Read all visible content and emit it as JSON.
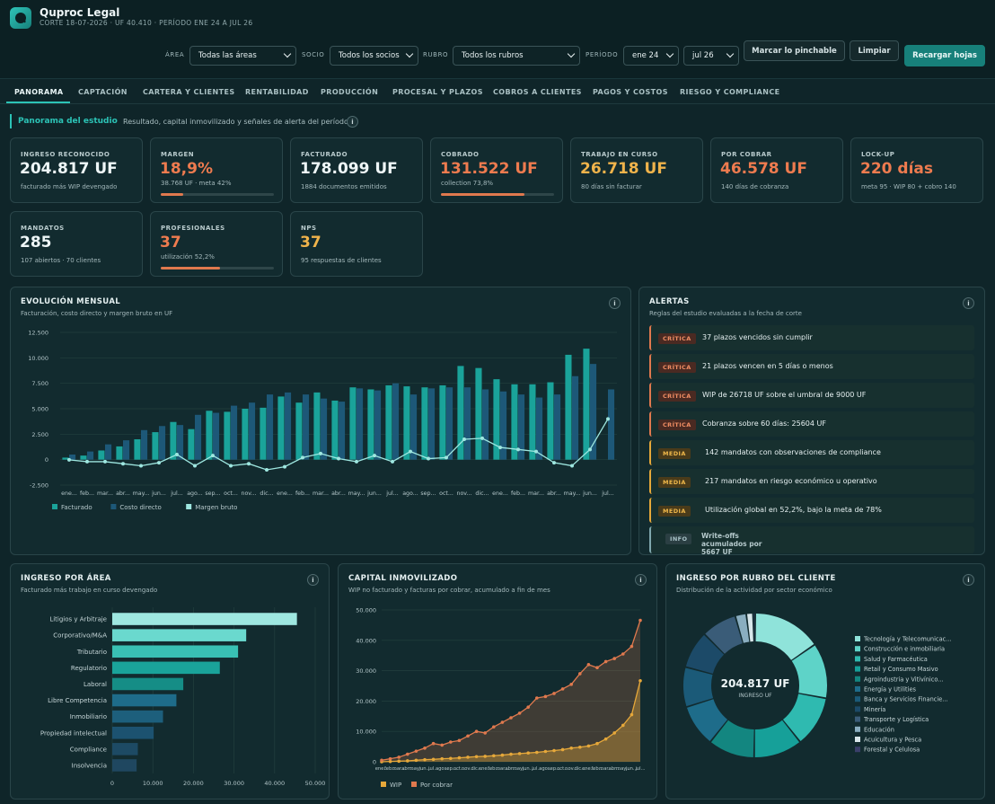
{
  "header": {
    "title": "Quproc Legal",
    "subtitle": "CORTE 18-07-2026 · UF 40.410 · PERÍODO ENE 24 A JUL 26"
  },
  "filters": {
    "area_label": "ÁREA",
    "area_value": "Todas las áreas",
    "socio_label": "SOCIO",
    "socio_value": "Todos los socios",
    "rubro_label": "RUBRO",
    "rubro_value": "Todos los rubros",
    "periodo_label": "PERÍODO",
    "periodo_from": "ene 24",
    "periodo_to": "jul 26"
  },
  "buttons": {
    "mark": "Marcar lo pinchable",
    "clear": "Limpiar",
    "reload": "Recargar hojas"
  },
  "tabs": [
    "PANORAMA",
    "CAPTACIÓN",
    "CARTERA Y CLIENTES",
    "RENTABILIDAD",
    "PRODUCCIÓN",
    "PROCESAL Y PLAZOS",
    "COBROS A CLIENTES",
    "PAGOS Y COSTOS",
    "RIESGO Y COMPLIANCE"
  ],
  "section": {
    "title": "Panorama del estudio",
    "desc": "Resultado, capital inmovilizado y señales de alerta del período.",
    "info": "i"
  },
  "kpis": [
    {
      "label": "INGRESO RECONOCIDO",
      "value": "204.817 UF",
      "sub": "facturado más WIP devengado",
      "color": "#eef6f7"
    },
    {
      "label": "MARGEN",
      "value": "18,9%",
      "sub": "38.768 UF · meta 42%",
      "color": "#ee7b4f",
      "progress": 0.2
    },
    {
      "label": "FACTURADO",
      "value": "178.099 UF",
      "sub": "1884 documentos emitidos",
      "color": "#eef6f7"
    },
    {
      "label": "COBRADO",
      "value": "131.522 UF",
      "sub": "collection 73,8%",
      "color": "#ee7b4f",
      "progress": 0.738
    },
    {
      "label": "TRABAJO EN CURSO",
      "value": "26.718 UF",
      "sub": "80 días sin facturar",
      "color": "#efb34b"
    },
    {
      "label": "POR COBRAR",
      "value": "46.578 UF",
      "sub": "140 días de cobranza",
      "color": "#ee7b4f"
    },
    {
      "label": "LOCK-UP",
      "value": "220 días",
      "sub": "meta 95 · WIP 80 + cobro 140",
      "color": "#ee7b4f"
    },
    {
      "label": "MANDATOS",
      "value": "285",
      "sub": "107 abiertos · 70 clientes",
      "color": "#eef6f7"
    },
    {
      "label": "PROFESIONALES",
      "value": "37",
      "sub": "utilización 52,2%",
      "color": "#ee7b4f",
      "progress": 0.522
    },
    {
      "label": "NPS",
      "value": "37",
      "sub": "95 respuestas de clientes",
      "color": "#efb34b"
    }
  ],
  "alerts_panel": {
    "title": "ALERTAS",
    "desc": "Reglas del estudio evaluadas a la fecha de corte"
  },
  "alerts": [
    {
      "level": "CRÍTICA",
      "text": "37 plazos vencidos sin cumplir"
    },
    {
      "level": "CRÍTICA",
      "text": "21 plazos vencen en 5 días o menos"
    },
    {
      "level": "CRÍTICA",
      "text": "WIP de 26718 UF sobre el umbral de 9000 UF"
    },
    {
      "level": "CRÍTICA",
      "text": "Cobranza sobre 60 días: 25604 UF"
    },
    {
      "level": "MEDIA",
      "text": "142 mandatos con observaciones de compliance"
    },
    {
      "level": "MEDIA",
      "text": "217 mandatos en riesgo económico u operativo"
    },
    {
      "level": "MEDIA",
      "text": "Utilización global en 52,2%, bajo la meta de 78%"
    },
    {
      "level": "INFO",
      "text": "Write-offs acumulados por 5667 UF"
    }
  ],
  "chart_data": [
    {
      "type": "bar",
      "title": "EVOLUCIÓN MENSUAL",
      "subtitle": "Facturación, costo directo y margen bruto en UF",
      "categories": [
        "ene...",
        "feb...",
        "mar...",
        "abr...",
        "may...",
        "jun...",
        "jul...",
        "ago...",
        "sep...",
        "oct...",
        "nov...",
        "dic...",
        "ene...",
        "feb...",
        "mar...",
        "abr...",
        "may...",
        "jun...",
        "jul...",
        "ago...",
        "sep...",
        "oct...",
        "nov...",
        "dic...",
        "ene...",
        "feb...",
        "mar...",
        "abr...",
        "may...",
        "jun...",
        "jul..."
      ],
      "ylim": [
        -2500,
        12500
      ],
      "yticks": [
        "-2.500",
        "0",
        "2.500",
        "5.000",
        "7.500",
        "10.000",
        "12.500"
      ],
      "series": [
        {
          "name": "Facturado",
          "color": "#1aa39a",
          "values": [
            200,
            400,
            900,
            1300,
            2000,
            2700,
            3700,
            3000,
            4800,
            4700,
            5000,
            5100,
            6200,
            5600,
            6600,
            5800,
            7100,
            6900,
            7300,
            7200,
            7100,
            7300,
            9200,
            9000,
            7900,
            7400,
            7400,
            7600,
            10300,
            10900,
            null
          ]
        },
        {
          "name": "Costo directo",
          "color": "#1d5878",
          "values": [
            500,
            800,
            1500,
            1900,
            2900,
            3300,
            3400,
            4400,
            4600,
            5300,
            5600,
            6400,
            6600,
            6400,
            6000,
            5700,
            7000,
            6800,
            7500,
            6400,
            7000,
            7100,
            7100,
            6900,
            6700,
            6400,
            6100,
            6400,
            8200,
            9400,
            6900
          ]
        },
        {
          "name": "Margen bruto",
          "color": "#9ee7e0",
          "values": [
            -20,
            -200,
            -200,
            -400,
            -600,
            -300,
            500,
            -600,
            400,
            -600,
            -400,
            -1000,
            -700,
            200,
            600,
            100,
            -200,
            400,
            -200,
            800,
            100,
            200,
            2000,
            2100,
            1200,
            1000,
            800,
            -300,
            -600,
            1000,
            4000
          ]
        }
      ]
    },
    {
      "type": "bar",
      "title": "INGRESO POR ÁREA",
      "subtitle": "Facturado más trabajo en curso devengado",
      "categories": [
        "Litigios y Arbitraje",
        "Corporativo/M&A",
        "Tributario",
        "Regulatorio",
        "Laboral",
        "Libre Competencia",
        "Inmobiliario",
        "Propiedad intelectual",
        "Compliance",
        "Insolvencia"
      ],
      "values": [
        45500,
        33000,
        31000,
        26500,
        17500,
        15800,
        12500,
        10200,
        6300,
        6000
      ],
      "xlim": [
        0,
        50000
      ],
      "xticks": [
        "0",
        "10.000",
        "20.000",
        "30.000",
        "40.000",
        "50.000"
      ]
    },
    {
      "type": "area",
      "title": "CAPITAL INMOVILIZADO",
      "subtitle": "WIP no facturado y facturas por cobrar, acumulado a fin de mes",
      "x": [
        "ene...",
        "feb...",
        "mar...",
        "abr...",
        "may...",
        "jun...",
        "jul...",
        "ago...",
        "sep...",
        "oct...",
        "nov...",
        "dic...",
        "ene...",
        "feb...",
        "mar...",
        "abr...",
        "may...",
        "jun...",
        "jul...",
        "ago...",
        "sep...",
        "oct...",
        "nov...",
        "dic...",
        "ene...",
        "feb...",
        "mar...",
        "abr...",
        "may...",
        "jun...",
        "jul..."
      ],
      "ylim": [
        0,
        50000
      ],
      "yticks": [
        "0",
        "10.000",
        "20.000",
        "30.000",
        "40.000",
        "50.000"
      ],
      "series": [
        {
          "name": "WIP",
          "color": "#e6a83a",
          "values": [
            0,
            100,
            200,
            300,
            500,
            700,
            800,
            1000,
            1100,
            1300,
            1500,
            1700,
            1800,
            2000,
            2200,
            2500,
            2700,
            2900,
            3100,
            3400,
            3700,
            4000,
            4500,
            4800,
            5200,
            6000,
            7500,
            9500,
            12000,
            15500,
            26700
          ]
        },
        {
          "name": "Por cobrar",
          "color": "#e0794e",
          "values": [
            500,
            1000,
            1500,
            2500,
            3500,
            4500,
            6000,
            5500,
            6500,
            7000,
            8500,
            10000,
            9500,
            11500,
            13000,
            14500,
            16000,
            18000,
            21000,
            21500,
            22500,
            24000,
            25500,
            29000,
            32000,
            31000,
            33000,
            34000,
            35500,
            38000,
            46600
          ]
        }
      ]
    },
    {
      "type": "pie",
      "title": "INGRESO POR RUBRO DEL CLIENTE",
      "subtitle": "Distribución de la actividad por sector económico",
      "center_value": "204.817 UF",
      "center_label": "INGRESO UF",
      "categories": [
        "Tecnología y Telecomunicac...",
        "Construcción e inmobiliaria",
        "Salud y Farmacéutica",
        "Retail y Consumo Masivo",
        "Agroindustria y Vitivínico...",
        "Energía y Utilities",
        "Banca y Servicios Financie...",
        "Minería",
        "Transporte y Logística",
        "Educación",
        "Acuicultura y Pesca",
        "Forestal y Celulosa"
      ],
      "values": [
        15.5,
        12.5,
        11.5,
        11,
        10.5,
        9.5,
        9,
        8.5,
        8,
        2.5,
        1.5,
        0.5
      ],
      "colors": [
        "#8fe3da",
        "#5ed3c8",
        "#2fbab0",
        "#16a099",
        "#138680",
        "#1e6c8a",
        "#1b5a78",
        "#1c4a68",
        "#3a5c78",
        "#8aaec0",
        "#d8e6ea",
        "#3a3f6a"
      ]
    }
  ]
}
